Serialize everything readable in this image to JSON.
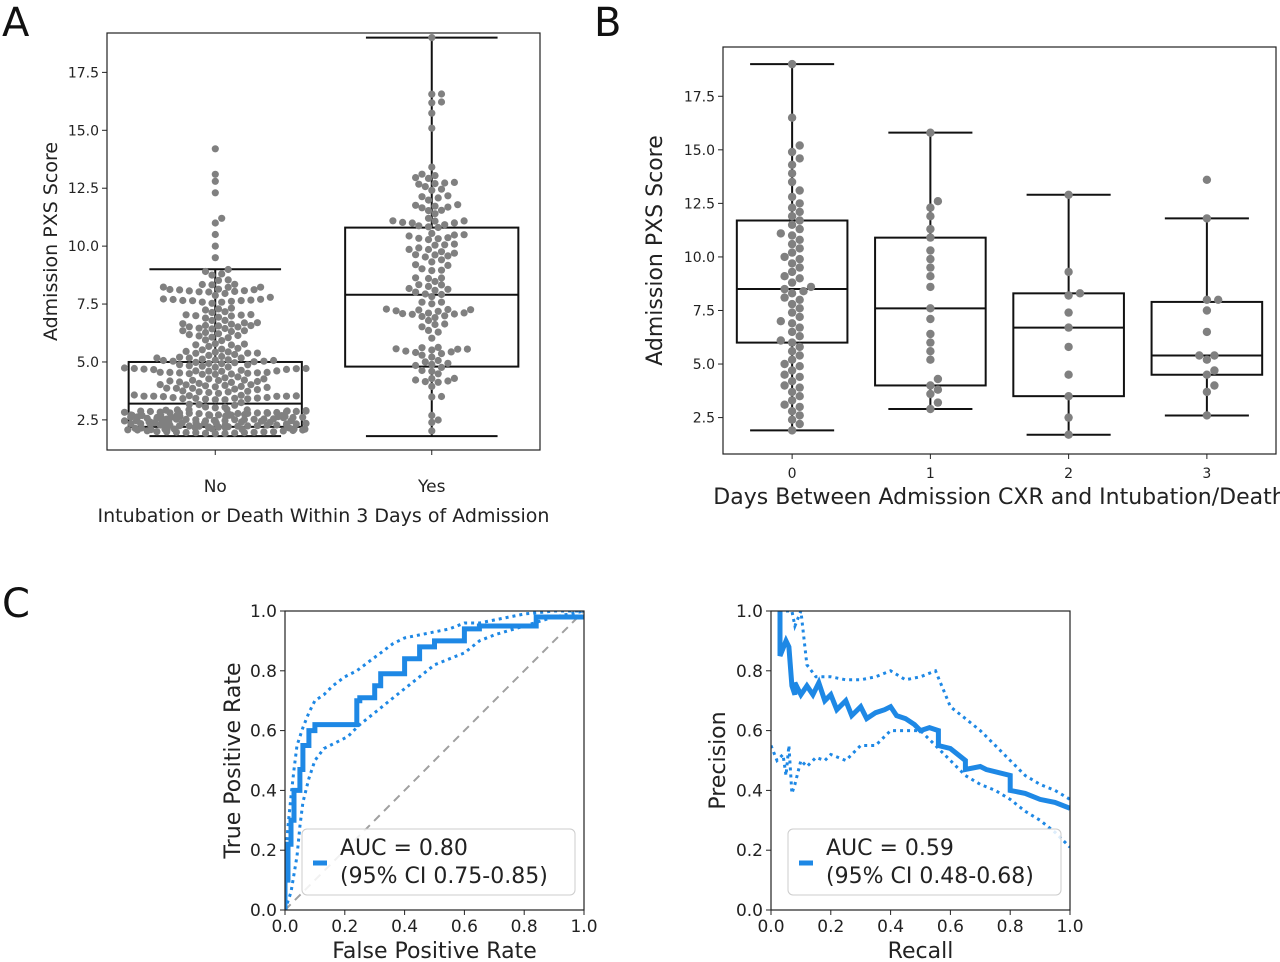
{
  "panels": {
    "a": "A",
    "b": "B",
    "c": "C"
  },
  "colors": {
    "dots": "#808080",
    "curve": "#1e88e5",
    "diagonal": "#a0a0a0",
    "box": "#111111"
  },
  "chart_data": [
    {
      "id": "A",
      "type": "box",
      "xlabel": "Intubation or Death Within 3 Days of Admission",
      "ylabel": "Admission PXS Score",
      "categories": [
        "No",
        "Yes"
      ],
      "ylim": [
        1.2,
        19.2
      ],
      "yticks": [
        "2.5",
        "5.0",
        "7.5",
        "10.0",
        "12.5",
        "15.0",
        "17.5"
      ],
      "boxes": [
        {
          "whisker_low": 1.8,
          "q1": 2.2,
          "median": 3.2,
          "q3": 5.0,
          "whisker_high": 9.0
        },
        {
          "whisker_low": 1.8,
          "q1": 4.8,
          "median": 7.9,
          "q3": 10.8,
          "whisker_high": 19.0
        }
      ],
      "outliers": [
        [
          9.5,
          10.0,
          10.5,
          11.0,
          11.2,
          12.3,
          12.8,
          13.1,
          14.2
        ],
        []
      ],
      "point_counts": [
        330,
        140
      ]
    },
    {
      "id": "B",
      "type": "box",
      "xlabel": "Days Between Admission CXR and Intubation/Death",
      "ylabel": "Admission PXS Score",
      "categories": [
        "0",
        "1",
        "2",
        "3"
      ],
      "ylim": [
        0.8,
        19.8
      ],
      "yticks": [
        "2.5",
        "5.0",
        "7.5",
        "10.0",
        "12.5",
        "15.0",
        "17.5"
      ],
      "boxes": [
        {
          "whisker_low": 1.9,
          "q1": 6.0,
          "median": 8.5,
          "q3": 11.7,
          "whisker_high": 19.0
        },
        {
          "whisker_low": 2.9,
          "q1": 4.0,
          "median": 7.6,
          "q3": 10.9,
          "whisker_high": 15.8
        },
        {
          "whisker_low": 1.7,
          "q1": 3.5,
          "median": 6.7,
          "q3": 8.3,
          "whisker_high": 12.9
        },
        {
          "whisker_low": 2.6,
          "q1": 4.5,
          "median": 5.4,
          "q3": 7.9,
          "whisker_high": 11.8
        }
      ],
      "points": [
        [
          1.9,
          2.2,
          2.4,
          2.6,
          2.8,
          3.0,
          3.1,
          3.3,
          3.5,
          3.7,
          3.9,
          4.0,
          4.2,
          4.4,
          4.5,
          4.7,
          4.9,
          5.0,
          5.2,
          5.4,
          5.6,
          5.8,
          6.0,
          6.1,
          6.3,
          6.5,
          6.7,
          6.9,
          7.0,
          7.2,
          7.4,
          7.6,
          7.8,
          8.0,
          8.1,
          8.3,
          8.4,
          8.5,
          8.6,
          8.8,
          9.0,
          9.1,
          9.3,
          9.5,
          9.7,
          9.9,
          10.0,
          10.2,
          10.4,
          10.6,
          10.8,
          11.0,
          11.1,
          11.3,
          11.5,
          11.7,
          11.9,
          12.1,
          12.3,
          12.5,
          12.8,
          13.1,
          13.5,
          13.9,
          14.3,
          14.6,
          14.9,
          15.2,
          16.5,
          19.0
        ],
        [
          2.9,
          3.2,
          3.6,
          3.8,
          4.0,
          4.3,
          5.2,
          5.6,
          6.0,
          6.4,
          7.1,
          7.6,
          8.6,
          9.1,
          9.5,
          9.9,
          10.3,
          10.9,
          11.3,
          11.9,
          12.3,
          12.6,
          15.8
        ],
        [
          1.7,
          2.5,
          3.5,
          4.5,
          5.8,
          6.7,
          7.4,
          8.2,
          8.3,
          9.3,
          12.9
        ],
        [
          2.6,
          3.7,
          4.0,
          4.5,
          4.7,
          5.2,
          5.4,
          5.4,
          6.5,
          7.5,
          8.0,
          8.0,
          11.8,
          13.6
        ]
      ]
    },
    {
      "id": "C-ROC",
      "type": "line",
      "xlabel": "False Positive Rate",
      "ylabel": "True Positive Rate",
      "xlim": [
        0,
        1
      ],
      "ylim": [
        0,
        1
      ],
      "ticks": [
        "0.0",
        "0.2",
        "0.4",
        "0.6",
        "0.8",
        "1.0"
      ],
      "legend": {
        "line1": "AUC = 0.80",
        "line2": "(95% CI 0.75-0.85)",
        "position": "lower-right"
      },
      "curve": {
        "x": [
          0,
          0.0,
          0.01,
          0.01,
          0.02,
          0.02,
          0.03,
          0.03,
          0.05,
          0.05,
          0.06,
          0.06,
          0.08,
          0.08,
          0.1,
          0.1,
          0.14,
          0.14,
          0.24,
          0.24,
          0.25,
          0.25,
          0.3,
          0.3,
          0.32,
          0.32,
          0.4,
          0.4,
          0.45,
          0.45,
          0.5,
          0.5,
          0.6,
          0.6,
          0.65,
          0.65,
          0.84,
          0.84,
          1.0
        ],
        "y": [
          0,
          0.1,
          0.1,
          0.22,
          0.22,
          0.3,
          0.3,
          0.4,
          0.4,
          0.47,
          0.47,
          0.55,
          0.55,
          0.6,
          0.6,
          0.62,
          0.62,
          0.62,
          0.62,
          0.7,
          0.7,
          0.71,
          0.71,
          0.75,
          0.75,
          0.79,
          0.79,
          0.84,
          0.84,
          0.88,
          0.88,
          0.9,
          0.9,
          0.94,
          0.94,
          0.95,
          0.95,
          0.98,
          0.98
        ]
      },
      "ci_upper": {
        "x": [
          0,
          0.0,
          0.01,
          0.02,
          0.03,
          0.04,
          0.06,
          0.08,
          0.1,
          0.13,
          0.16,
          0.2,
          0.24,
          0.28,
          0.32,
          0.36,
          0.4,
          0.45,
          0.5,
          0.55,
          0.6,
          0.65,
          0.7,
          0.8,
          0.9,
          1.0
        ],
        "y": [
          0,
          0.15,
          0.28,
          0.38,
          0.47,
          0.55,
          0.61,
          0.66,
          0.7,
          0.72,
          0.75,
          0.78,
          0.8,
          0.83,
          0.86,
          0.89,
          0.91,
          0.92,
          0.93,
          0.94,
          0.96,
          0.96,
          0.97,
          0.99,
          1.0,
          1.0
        ]
      },
      "ci_lower": {
        "x": [
          0,
          0.02,
          0.04,
          0.05,
          0.06,
          0.08,
          0.1,
          0.13,
          0.17,
          0.21,
          0.25,
          0.3,
          0.35,
          0.4,
          0.45,
          0.5,
          0.55,
          0.6,
          0.65,
          0.7,
          0.8,
          0.9,
          1.0
        ],
        "y": [
          0,
          0.06,
          0.18,
          0.28,
          0.36,
          0.44,
          0.5,
          0.54,
          0.56,
          0.58,
          0.62,
          0.66,
          0.7,
          0.74,
          0.78,
          0.82,
          0.84,
          0.86,
          0.9,
          0.92,
          0.95,
          0.98,
          1.0
        ]
      },
      "diagonal": true
    },
    {
      "id": "C-PR",
      "type": "line",
      "xlabel": "Recall",
      "ylabel": "Precision",
      "xlim": [
        0,
        1
      ],
      "ylim": [
        0,
        1
      ],
      "ticks": [
        "0.0",
        "0.2",
        "0.4",
        "0.6",
        "0.8",
        "1.0"
      ],
      "legend": {
        "line1": "AUC = 0.59",
        "line2": "(95% CI 0.48-0.68)",
        "position": "lower-right"
      },
      "curve": {
        "x": [
          0.03,
          0.03,
          0.05,
          0.06,
          0.07,
          0.08,
          0.08,
          0.1,
          0.12,
          0.14,
          0.16,
          0.18,
          0.2,
          0.22,
          0.25,
          0.27,
          0.3,
          0.32,
          0.35,
          0.38,
          0.4,
          0.42,
          0.45,
          0.48,
          0.5,
          0.53,
          0.56,
          0.56,
          0.6,
          0.65,
          0.65,
          0.7,
          0.72,
          0.8,
          0.8,
          0.85,
          0.9,
          0.95,
          1.0
        ],
        "y": [
          1.0,
          0.85,
          0.9,
          0.88,
          0.75,
          0.72,
          0.76,
          0.72,
          0.75,
          0.72,
          0.76,
          0.7,
          0.72,
          0.67,
          0.7,
          0.65,
          0.68,
          0.64,
          0.66,
          0.67,
          0.68,
          0.65,
          0.64,
          0.62,
          0.6,
          0.61,
          0.6,
          0.55,
          0.54,
          0.5,
          0.47,
          0.48,
          0.47,
          0.45,
          0.4,
          0.39,
          0.37,
          0.36,
          0.34
        ]
      },
      "ci_upper": {
        "x": [
          0.05,
          0.07,
          0.08,
          0.1,
          0.12,
          0.15,
          0.2,
          0.25,
          0.3,
          0.35,
          0.4,
          0.45,
          0.5,
          0.55,
          0.6,
          0.65,
          0.7,
          0.75,
          0.8,
          0.85,
          0.9,
          0.95,
          1.0
        ],
        "y": [
          1.0,
          1.0,
          0.95,
          1.0,
          0.82,
          0.78,
          0.78,
          0.77,
          0.77,
          0.78,
          0.8,
          0.77,
          0.78,
          0.8,
          0.68,
          0.64,
          0.6,
          0.55,
          0.5,
          0.45,
          0.42,
          0.4,
          0.37
        ]
      },
      "ci_lower": {
        "x": [
          0.0,
          0.02,
          0.04,
          0.05,
          0.06,
          0.07,
          0.08,
          0.1,
          0.12,
          0.15,
          0.18,
          0.2,
          0.25,
          0.3,
          0.35,
          0.4,
          0.45,
          0.5,
          0.55,
          0.6,
          0.65,
          0.7,
          0.75,
          0.8,
          0.85,
          0.9,
          0.95,
          1.0
        ],
        "y": [
          0.55,
          0.5,
          0.52,
          0.45,
          0.55,
          0.39,
          0.42,
          0.5,
          0.48,
          0.51,
          0.5,
          0.52,
          0.5,
          0.55,
          0.55,
          0.6,
          0.6,
          0.6,
          0.55,
          0.5,
          0.45,
          0.42,
          0.4,
          0.37,
          0.33,
          0.3,
          0.26,
          0.21
        ]
      }
    }
  ]
}
